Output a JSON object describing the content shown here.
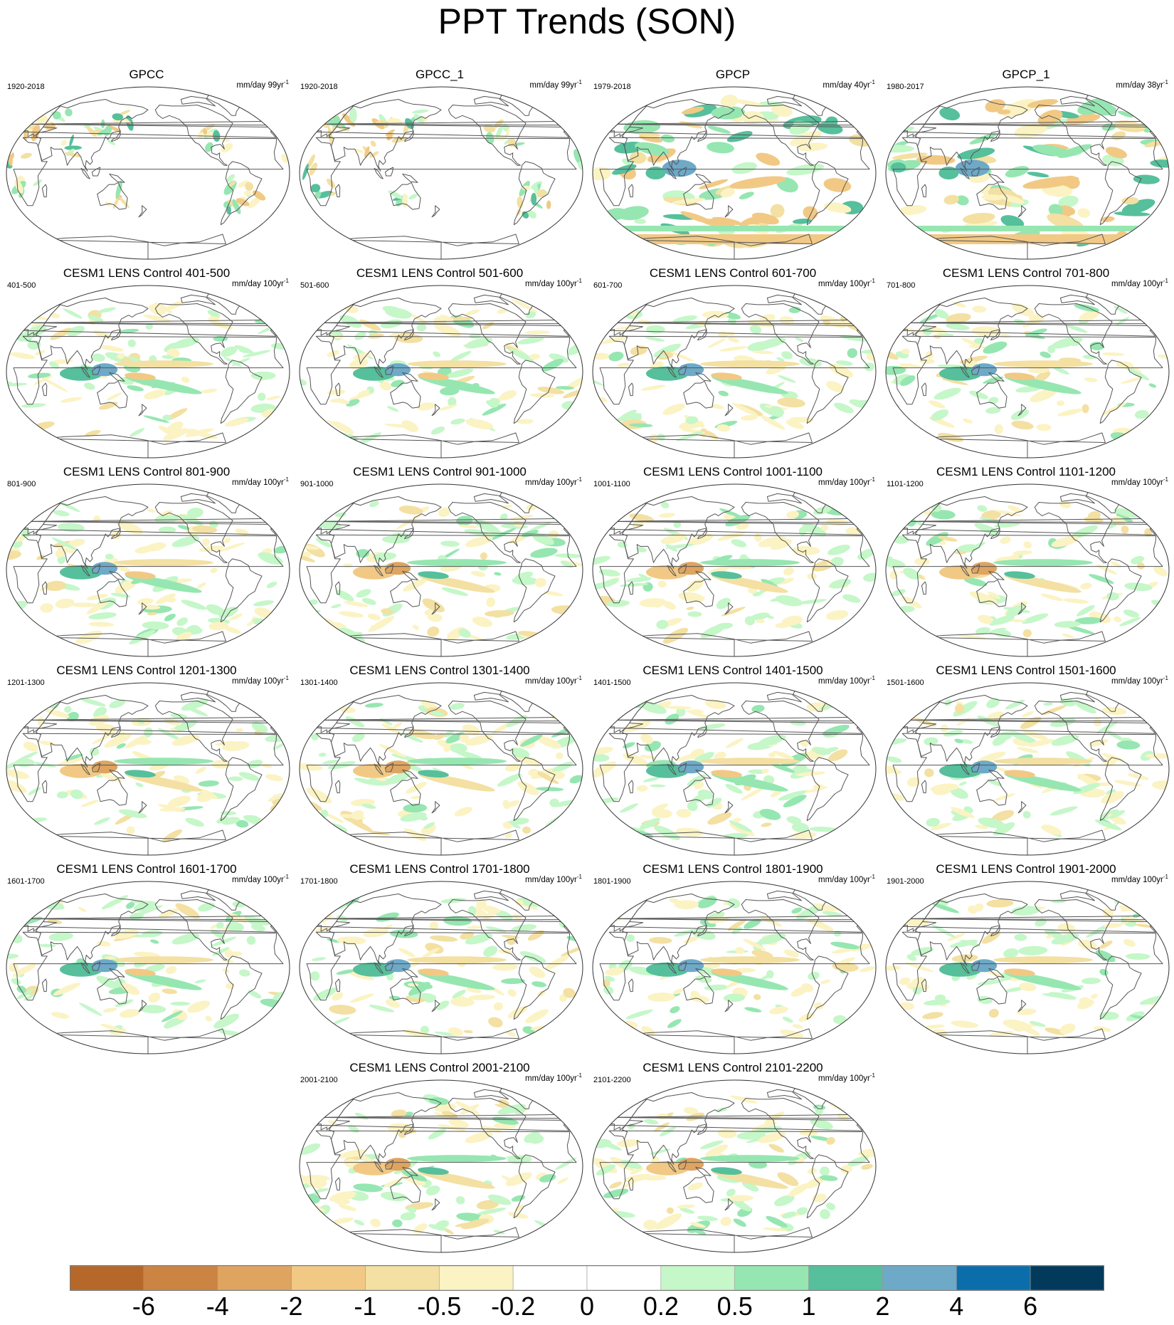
{
  "title": "PPT Trends (SON)",
  "panels": [
    {
      "title": "GPCC",
      "period": "1920-2018",
      "units": "mm/day 99yr",
      "style": "obs-land"
    },
    {
      "title": "GPCC_1",
      "period": "1920-2018",
      "units": "mm/day 99yr",
      "style": "obs-land"
    },
    {
      "title": "GPCP",
      "period": "1979-2018",
      "units": "mm/day 40yr",
      "style": "obs-sat"
    },
    {
      "title": "GPCP_1",
      "period": "1980-2017",
      "units": "mm/day 38yr",
      "style": "obs-sat"
    },
    {
      "title": "CESM1 LENS Control 401-500",
      "period": "401-500",
      "units": "mm/day 100yr",
      "style": "model"
    },
    {
      "title": "CESM1 LENS Control 501-600",
      "period": "501-600",
      "units": "mm/day 100yr",
      "style": "model"
    },
    {
      "title": "CESM1 LENS Control 601-700",
      "period": "601-700",
      "units": "mm/day 100yr",
      "style": "model"
    },
    {
      "title": "CESM1 LENS Control 701-800",
      "period": "701-800",
      "units": "mm/day 100yr",
      "style": "model"
    },
    {
      "title": "CESM1 LENS Control 801-900",
      "period": "801-900",
      "units": "mm/day 100yr",
      "style": "model"
    },
    {
      "title": "CESM1 LENS Control 901-1000",
      "period": "901-1000",
      "units": "mm/day 100yr",
      "style": "model"
    },
    {
      "title": "CESM1 LENS Control 1001-1100",
      "period": "1001-1100",
      "units": "mm/day 100yr",
      "style": "model"
    },
    {
      "title": "CESM1 LENS Control 1101-1200",
      "period": "1101-1200",
      "units": "mm/day 100yr",
      "style": "model"
    },
    {
      "title": "CESM1 LENS Control 1201-1300",
      "period": "1201-1300",
      "units": "mm/day 100yr",
      "style": "model"
    },
    {
      "title": "CESM1 LENS Control 1301-1400",
      "period": "1301-1400",
      "units": "mm/day 100yr",
      "style": "model"
    },
    {
      "title": "CESM1 LENS Control 1401-1500",
      "period": "1401-1500",
      "units": "mm/day 100yr",
      "style": "model"
    },
    {
      "title": "CESM1 LENS Control 1501-1600",
      "period": "1501-1600",
      "units": "mm/day 100yr",
      "style": "model"
    },
    {
      "title": "CESM1 LENS Control 1601-1700",
      "period": "1601-1700",
      "units": "mm/day 100yr",
      "style": "model"
    },
    {
      "title": "CESM1 LENS Control 1701-1800",
      "period": "1701-1800",
      "units": "mm/day 100yr",
      "style": "model"
    },
    {
      "title": "CESM1 LENS Control 1801-1900",
      "period": "1801-1900",
      "units": "mm/day 100yr",
      "style": "model"
    },
    {
      "title": "CESM1 LENS Control 1901-2000",
      "period": "1901-2000",
      "units": "mm/day 100yr",
      "style": "model"
    },
    {
      "title": "CESM1 LENS Control 2001-2100",
      "period": "2001-2100",
      "units": "mm/day 100yr",
      "style": "model"
    },
    {
      "title": "CESM1 LENS Control 2101-2200",
      "period": "2101-2200",
      "units": "mm/day 100yr",
      "style": "model"
    }
  ],
  "colorbar": {
    "labels": [
      "-6",
      "-4",
      "-2",
      "-1",
      "-0.5",
      "-0.2",
      "0",
      "0.2",
      "0.5",
      "1",
      "2",
      "4",
      "6"
    ],
    "colors": [
      "#b5682a",
      "#cc8442",
      "#dea460",
      "#f1c985",
      "#f3e0a2",
      "#fbf3c3",
      "#ffffff",
      "#ffffff",
      "#c5f7c9",
      "#96e6b1",
      "#56bf9c",
      "#6ea9c8",
      "#0b6eab",
      "#023a5c"
    ]
  }
}
